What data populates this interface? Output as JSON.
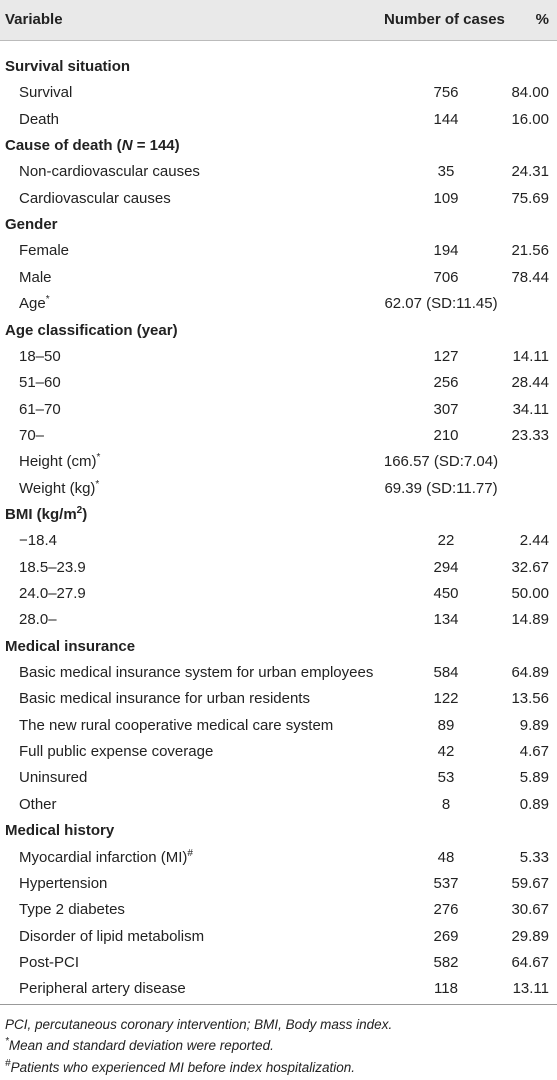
{
  "table": {
    "header": [
      "Variable",
      "Number of cases",
      "%"
    ],
    "sections": [
      {
        "title": [
          {
            "text": "Survival situation"
          }
        ],
        "rows": [
          {
            "label": [
              {
                "text": "Survival"
              }
            ],
            "cases": 756,
            "percent": "84.00"
          },
          {
            "label": [
              {
                "text": "Death"
              }
            ],
            "cases": 144,
            "percent": "16.00"
          }
        ]
      },
      {
        "title": [
          {
            "text": "Cause of death ("
          },
          {
            "text": "N",
            "style": "italic"
          },
          {
            "text": " = 144)"
          }
        ],
        "rows": [
          {
            "label": [
              {
                "text": "Non-cardiovascular causes"
              }
            ],
            "cases": 35,
            "percent": "24.31"
          },
          {
            "label": [
              {
                "text": "Cardiovascular causes"
              }
            ],
            "cases": 109,
            "percent": "75.69"
          }
        ]
      },
      {
        "title": [
          {
            "text": "Gender"
          }
        ],
        "rows": [
          {
            "label": [
              {
                "text": "Female"
              }
            ],
            "cases": 194,
            "percent": "21.56"
          },
          {
            "label": [
              {
                "text": "Male"
              }
            ],
            "cases": 706,
            "percent": "78.44"
          },
          {
            "label": [
              {
                "text": "Age"
              },
              {
                "text": "*",
                "style": "sup"
              }
            ],
            "merged": "62.07 (SD:11.45)"
          }
        ]
      },
      {
        "title": [
          {
            "text": "Age classification (year)"
          }
        ],
        "rows": [
          {
            "label": [
              {
                "text": "18–50"
              }
            ],
            "cases": 127,
            "percent": "14.11"
          },
          {
            "label": [
              {
                "text": "51–60"
              }
            ],
            "cases": 256,
            "percent": "28.44"
          },
          {
            "label": [
              {
                "text": "61–70"
              }
            ],
            "cases": 307,
            "percent": "34.11"
          },
          {
            "label": [
              {
                "text": "70–"
              }
            ],
            "cases": 210,
            "percent": "23.33"
          },
          {
            "label": [
              {
                "text": "Height (cm)"
              },
              {
                "text": "*",
                "style": "sup"
              }
            ],
            "merged": "166.57 (SD:7.04)"
          },
          {
            "label": [
              {
                "text": "Weight (kg)"
              },
              {
                "text": "*",
                "style": "sup"
              }
            ],
            "merged": "69.39 (SD:11.77)"
          }
        ]
      },
      {
        "title": [
          {
            "text": "BMI (kg/m"
          },
          {
            "text": "2",
            "style": "sup"
          },
          {
            "text": ")"
          }
        ],
        "rows": [
          {
            "label": [
              {
                "text": "−18.4"
              }
            ],
            "cases": 22,
            "percent": "2.44"
          },
          {
            "label": [
              {
                "text": "18.5–23.9"
              }
            ],
            "cases": 294,
            "percent": "32.67"
          },
          {
            "label": [
              {
                "text": "24.0–27.9"
              }
            ],
            "cases": 450,
            "percent": "50.00"
          },
          {
            "label": [
              {
                "text": "28.0–"
              }
            ],
            "cases": 134,
            "percent": "14.89"
          }
        ]
      },
      {
        "title": [
          {
            "text": "Medical insurance"
          }
        ],
        "rows": [
          {
            "label": [
              {
                "text": "Basic medical insurance system for urban employees"
              }
            ],
            "cases": 584,
            "percent": "64.89"
          },
          {
            "label": [
              {
                "text": "Basic medical insurance for urban residents"
              }
            ],
            "cases": 122,
            "percent": "13.56"
          },
          {
            "label": [
              {
                "text": "The new rural cooperative medical care system"
              }
            ],
            "cases": 89,
            "percent": "9.89"
          },
          {
            "label": [
              {
                "text": "Full public expense coverage"
              }
            ],
            "cases": 42,
            "percent": "4.67"
          },
          {
            "label": [
              {
                "text": "Uninsured"
              }
            ],
            "cases": 53,
            "percent": "5.89"
          },
          {
            "label": [
              {
                "text": "Other"
              }
            ],
            "cases": 8,
            "percent": "0.89"
          }
        ]
      },
      {
        "title": [
          {
            "text": "Medical history"
          }
        ],
        "rows": [
          {
            "label": [
              {
                "text": "Myocardial infarction (MI)"
              },
              {
                "text": "#",
                "style": "sup"
              }
            ],
            "cases": 48,
            "percent": "5.33"
          },
          {
            "label": [
              {
                "text": "Hypertension"
              }
            ],
            "cases": 537,
            "percent": "59.67"
          },
          {
            "label": [
              {
                "text": "Type 2 diabetes"
              }
            ],
            "cases": 276,
            "percent": "30.67"
          },
          {
            "label": [
              {
                "text": "Disorder of lipid metabolism"
              }
            ],
            "cases": 269,
            "percent": "29.89"
          },
          {
            "label": [
              {
                "text": "Post-PCI"
              }
            ],
            "cases": 582,
            "percent": "64.67"
          },
          {
            "label": [
              {
                "text": "Peripheral artery disease"
              }
            ],
            "cases": 118,
            "percent": "13.11"
          }
        ]
      }
    ],
    "footnotes": [
      [
        {
          "text": "PCI, percutaneous coronary intervention; BMI, Body mass index."
        }
      ],
      [
        {
          "text": "*",
          "style": "sup"
        },
        {
          "text": "Mean and standard deviation were reported."
        }
      ],
      [
        {
          "text": "#",
          "style": "sup"
        },
        {
          "text": "Patients who experienced MI before index hospitalization."
        }
      ]
    ]
  }
}
